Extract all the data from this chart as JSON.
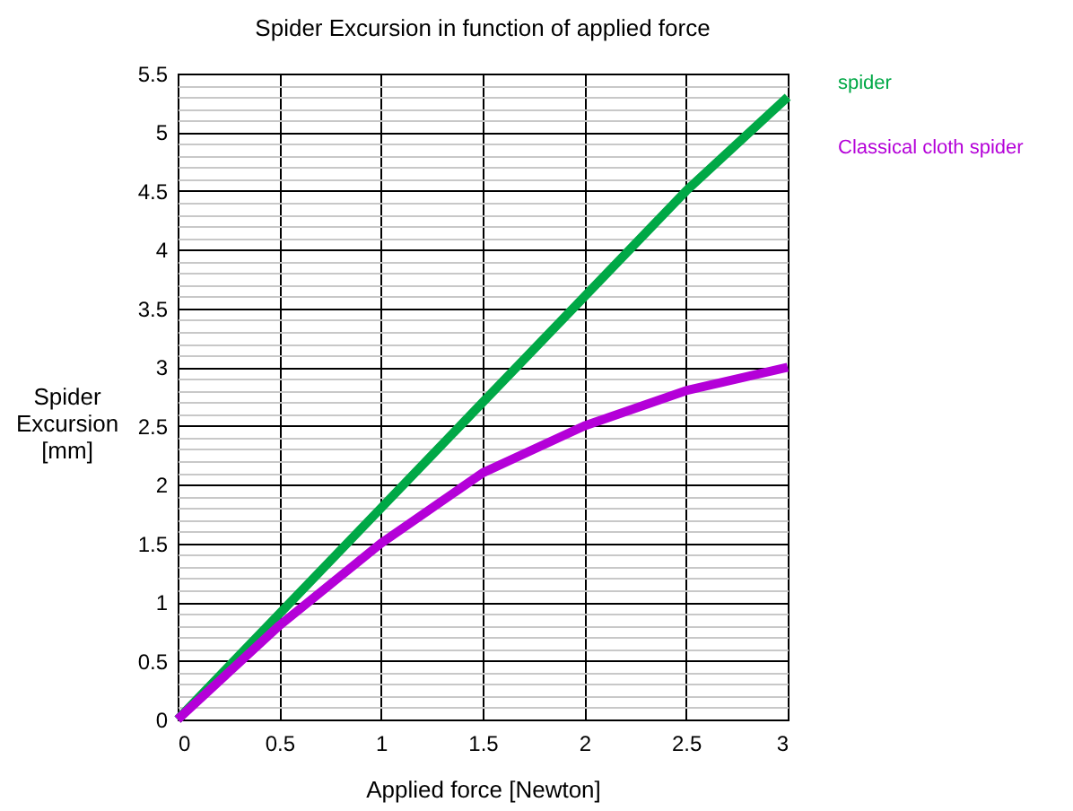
{
  "chart_data": {
    "type": "line",
    "title": "Spider Excursion in function of applied force",
    "xlabel": "Applied force [Newton]",
    "ylabel": "Spider Excursion [mm]",
    "x": [
      0,
      0.5,
      1,
      1.5,
      2,
      2.5,
      3
    ],
    "series": [
      {
        "name": "spider",
        "color": "#00a846",
        "values": [
          0,
          0.9,
          1.8,
          2.7,
          3.6,
          4.5,
          5.3
        ]
      },
      {
        "name": "Classical cloth spider",
        "color": "#b400d8",
        "values": [
          0,
          0.8,
          1.5,
          2.1,
          2.5,
          2.8,
          3.0
        ]
      }
    ],
    "xlim": [
      0,
      3
    ],
    "xticks": [
      0,
      0.5,
      1,
      1.5,
      2,
      2.5,
      3
    ],
    "ylim": [
      0,
      5.5
    ],
    "yticks": [
      0,
      0.5,
      1,
      1.5,
      2,
      2.5,
      3,
      3.5,
      4,
      4.5,
      5,
      5.5
    ],
    "grid": true,
    "legend": "right"
  }
}
